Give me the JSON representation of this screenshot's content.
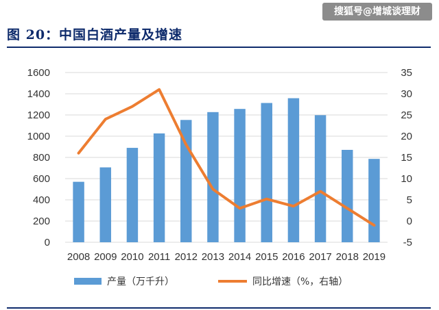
{
  "header": {
    "title": "图 20：中国白酒产量及增速",
    "watermark": "搜狐号@增城谈理财"
  },
  "chart_data": {
    "type": "bar+line",
    "categories": [
      "2008",
      "2009",
      "2010",
      "2011",
      "2012",
      "2013",
      "2014",
      "2015",
      "2016",
      "2017",
      "2018",
      "2019"
    ],
    "series": [
      {
        "name": "产量（万千升）",
        "type": "bar",
        "axis": "left",
        "color": "#5b9bd5",
        "values": [
          570,
          706,
          890,
          1026,
          1153,
          1227,
          1257,
          1313,
          1358,
          1198,
          871,
          786
        ]
      },
      {
        "name": "同比增速（%，右轴）",
        "type": "line",
        "axis": "right",
        "color": "#ed7d31",
        "values": [
          16,
          24,
          27,
          31,
          18,
          7.5,
          3,
          5.2,
          3.5,
          7,
          3,
          -1
        ]
      }
    ],
    "y_left": {
      "ylim": [
        0,
        1600
      ],
      "ticks": [
        0,
        200,
        400,
        600,
        800,
        1000,
        1200,
        1400,
        1600
      ]
    },
    "y_right": {
      "ylim": [
        -5,
        35
      ],
      "ticks": [
        -5,
        0,
        5,
        10,
        15,
        20,
        25,
        30,
        35
      ]
    },
    "legend": "bottom"
  }
}
